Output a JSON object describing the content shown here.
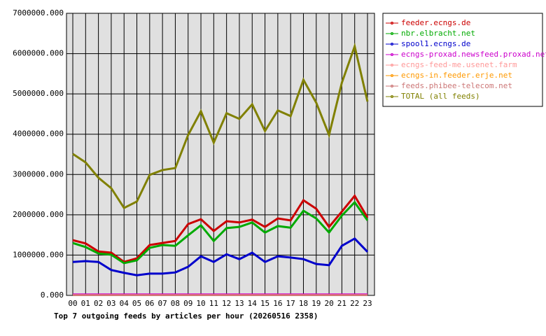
{
  "chart_data": {
    "type": "line",
    "title": "Top 7 outgoing feeds by articles per hour (20260516 2358)",
    "categories": [
      "00",
      "01",
      "02",
      "03",
      "04",
      "05",
      "06",
      "07",
      "08",
      "09",
      "10",
      "11",
      "12",
      "13",
      "14",
      "15",
      "16",
      "17",
      "18",
      "19",
      "20",
      "21",
      "22",
      "23"
    ],
    "ylim": [
      0,
      7000000
    ],
    "yticks": [
      {
        "value": 0,
        "label": "0.000"
      },
      {
        "value": 1000000,
        "label": "1000000.000"
      },
      {
        "value": 2000000,
        "label": "2000000.000"
      },
      {
        "value": 3000000,
        "label": "3000000.000"
      },
      {
        "value": 4000000,
        "label": "4000000.000"
      },
      {
        "value": 5000000,
        "label": "5000000.000"
      },
      {
        "value": 6000000,
        "label": "6000000.000"
      },
      {
        "value": 7000000,
        "label": "7000000.000"
      }
    ],
    "grid": true,
    "legend": "right",
    "series": [
      {
        "name": "feeder.ecngs.de",
        "color": "#cc0000",
        "values": [
          1370000,
          1290000,
          1090000,
          1060000,
          830000,
          920000,
          1250000,
          1300000,
          1350000,
          1770000,
          1890000,
          1600000,
          1840000,
          1810000,
          1880000,
          1700000,
          1910000,
          1860000,
          2360000,
          2150000,
          1700000,
          2080000,
          2470000,
          1930000
        ]
      },
      {
        "name": "nbr.elbracht.net",
        "color": "#00aa00",
        "values": [
          1300000,
          1200000,
          1040000,
          1010000,
          800000,
          870000,
          1180000,
          1250000,
          1230000,
          1490000,
          1740000,
          1350000,
          1670000,
          1700000,
          1810000,
          1560000,
          1720000,
          1680000,
          2100000,
          1910000,
          1560000,
          1980000,
          2310000,
          1860000
        ]
      },
      {
        "name": "spool1.ecngs.de",
        "color": "#0000cc",
        "values": [
          830000,
          850000,
          830000,
          630000,
          560000,
          500000,
          540000,
          540000,
          570000,
          710000,
          970000,
          830000,
          1020000,
          900000,
          1060000,
          830000,
          970000,
          940000,
          900000,
          780000,
          750000,
          1230000,
          1410000,
          1080000
        ]
      },
      {
        "name": "ecngs-proxad.newsfeed.proxad.net",
        "color": "#cc00cc",
        "values": [
          30000,
          30000,
          30000,
          30000,
          30000,
          30000,
          30000,
          30000,
          30000,
          30000,
          30000,
          30000,
          30000,
          30000,
          30000,
          30000,
          30000,
          30000,
          30000,
          30000,
          30000,
          30000,
          30000,
          30000
        ]
      },
      {
        "name": "ecngs-feed-me.usenet.farm",
        "color": "#ff9999",
        "values": [
          10000,
          10000,
          10000,
          10000,
          10000,
          10000,
          10000,
          10000,
          10000,
          10000,
          10000,
          10000,
          10000,
          10000,
          10000,
          10000,
          10000,
          10000,
          10000,
          10000,
          10000,
          10000,
          10000,
          10000
        ]
      },
      {
        "name": "ecngs-in.feeder.erje.net",
        "color": "#ff9900",
        "values": [
          5000,
          5000,
          5000,
          5000,
          5000,
          5000,
          5000,
          5000,
          5000,
          5000,
          5000,
          5000,
          5000,
          5000,
          5000,
          5000,
          5000,
          5000,
          5000,
          5000,
          5000,
          5000,
          5000,
          5000
        ]
      },
      {
        "name": "feeds.phibee-telecom.net",
        "color": "#cc7777",
        "values": [
          2000,
          2000,
          2000,
          2000,
          2000,
          2000,
          2000,
          2000,
          2000,
          2000,
          2000,
          2000,
          2000,
          2000,
          2000,
          2000,
          2000,
          2000,
          2000,
          2000,
          2000,
          2000,
          2000,
          2000
        ]
      },
      {
        "name": "TOTAL (all feeds)",
        "color": "#808000",
        "values": [
          3510000,
          3300000,
          2920000,
          2660000,
          2170000,
          2330000,
          2990000,
          3110000,
          3160000,
          3980000,
          4570000,
          3790000,
          4520000,
          4380000,
          4740000,
          4080000,
          4590000,
          4450000,
          5350000,
          4780000,
          3980000,
          5280000,
          6180000,
          4810000
        ]
      }
    ]
  }
}
